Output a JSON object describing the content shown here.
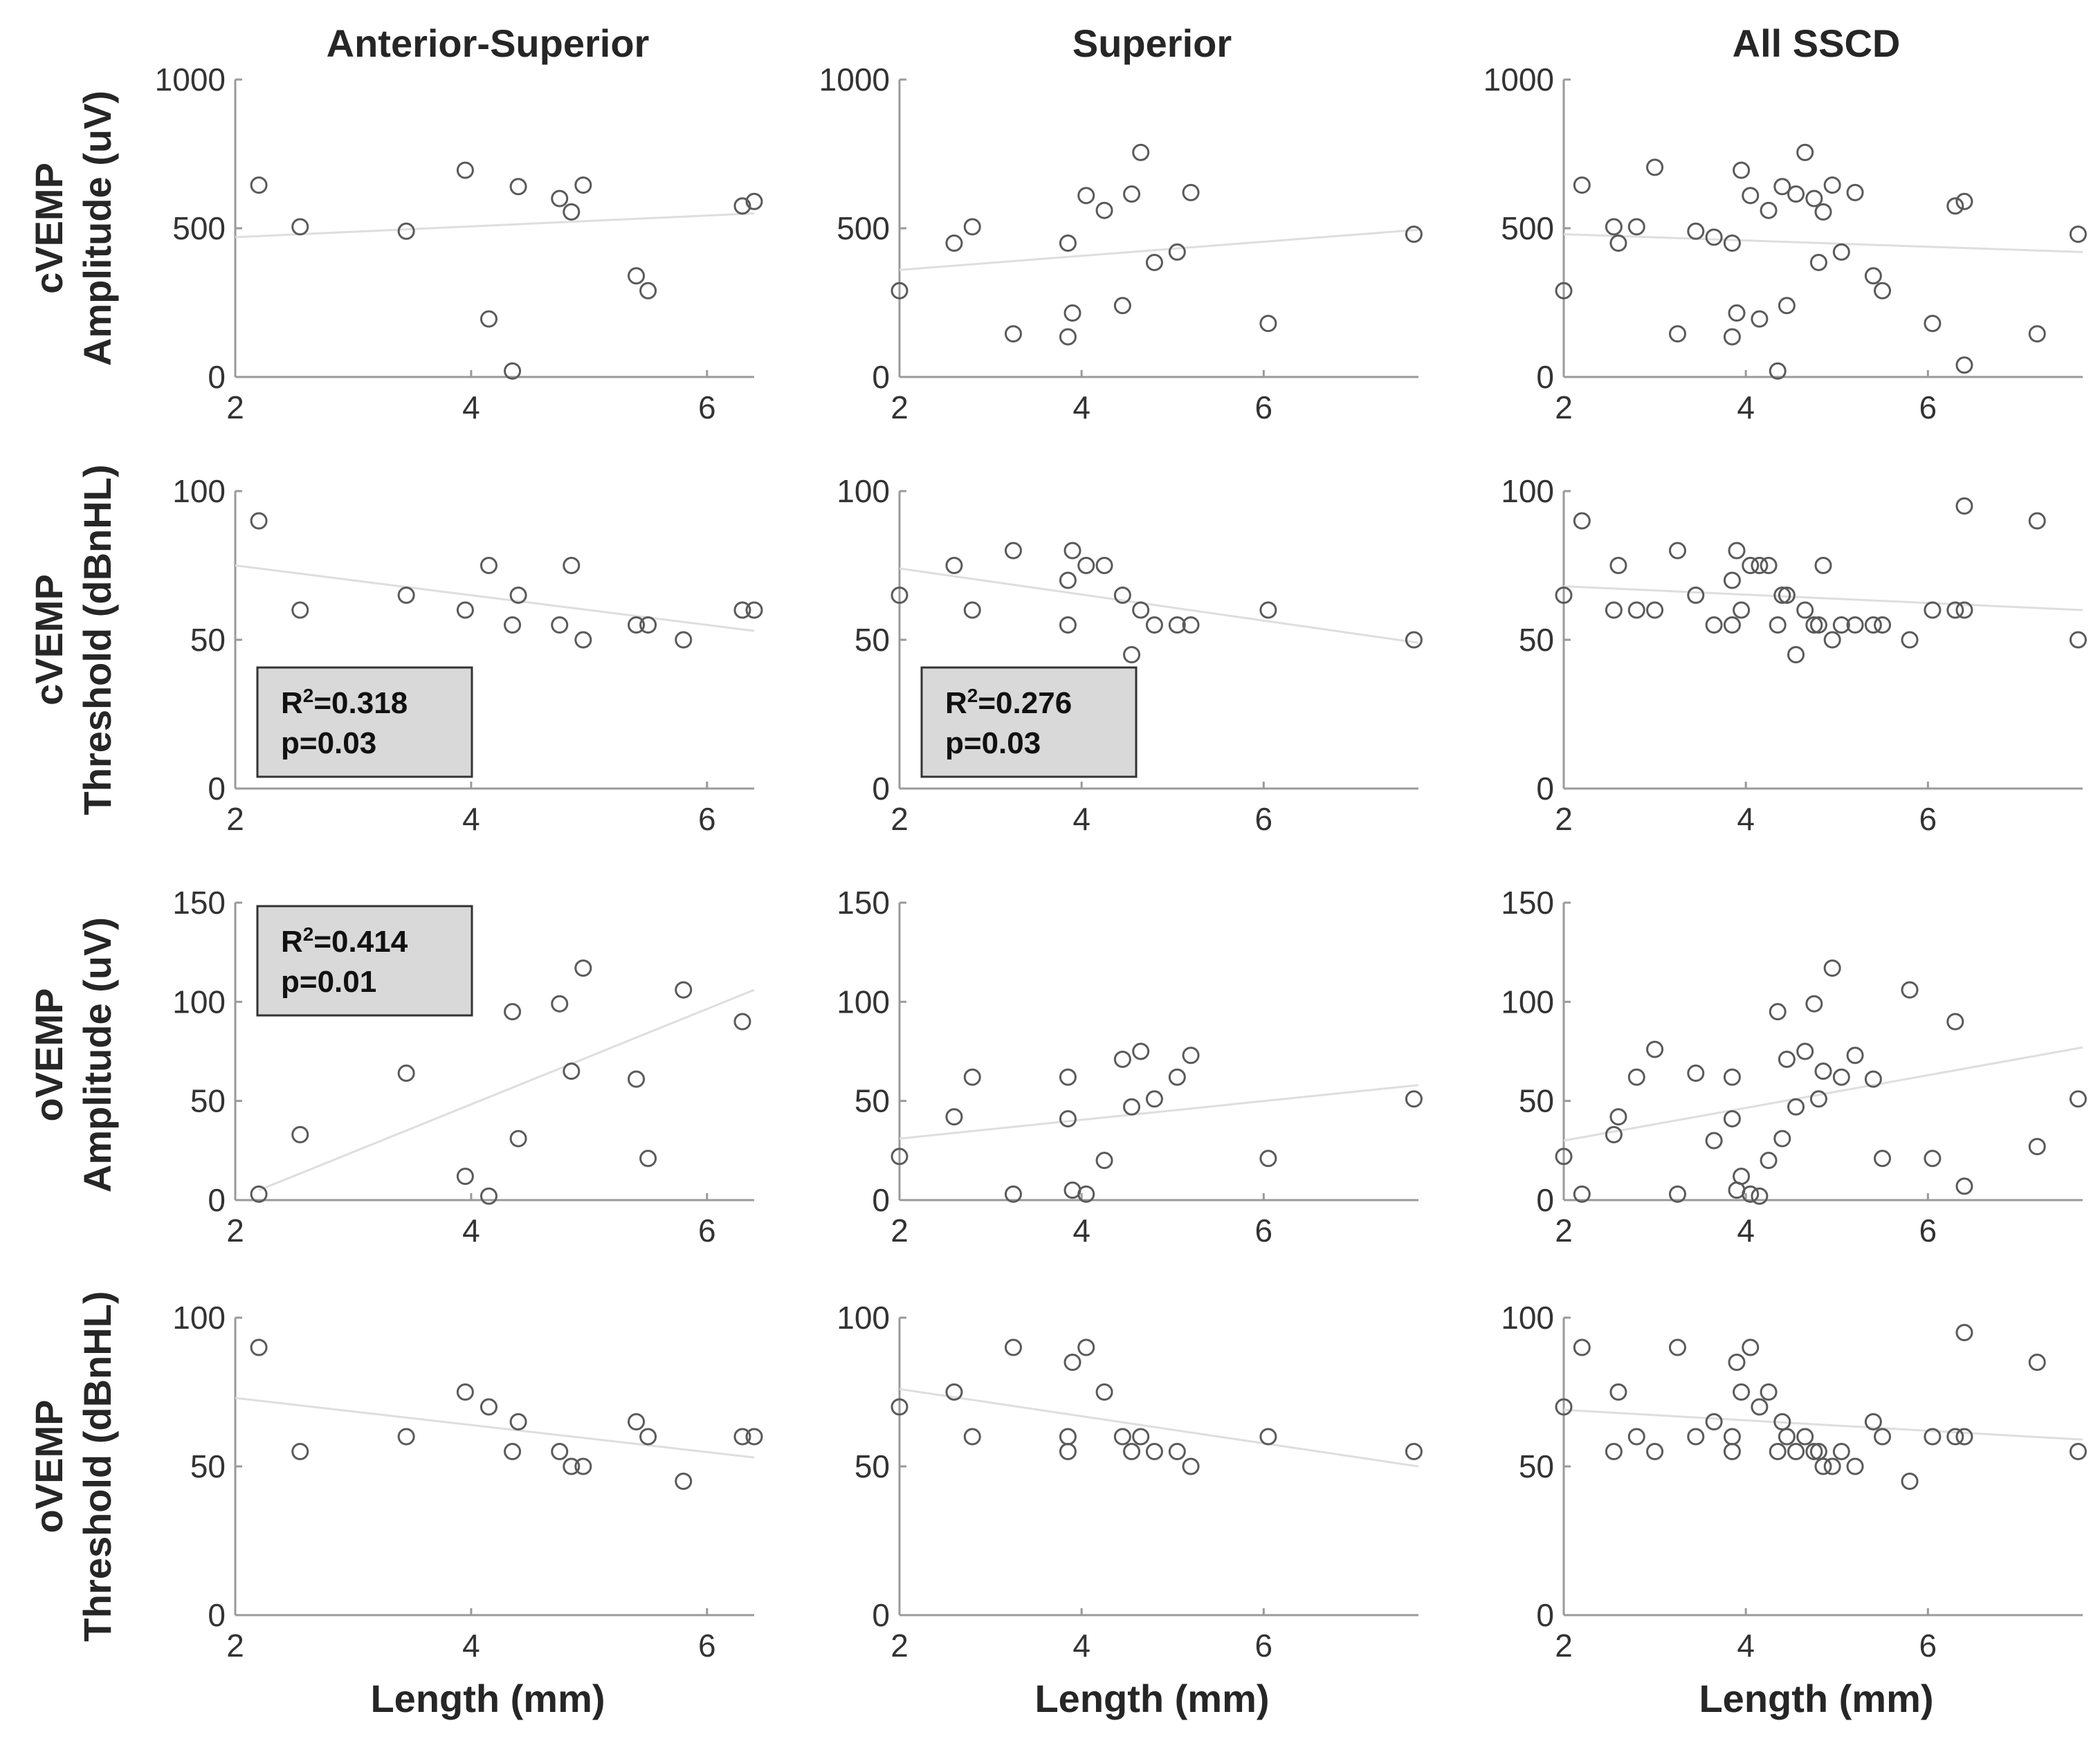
{
  "figure": {
    "columns": [
      "Anterior-Superior",
      "Superior",
      "All SSCD"
    ],
    "rows": [
      [
        "cVEMP",
        "Amplitude (uV)"
      ],
      [
        "cVEMP",
        "Threshold (dBnHL)"
      ],
      [
        "oVEMP",
        "Amplitude (uV)"
      ],
      [
        "oVEMP",
        "Threshold (dBnHL)"
      ]
    ],
    "xlabel": "Length (mm)"
  },
  "chart_data": [
    {
      "type": "scatter",
      "title": "Anterior-Superior",
      "row": 0,
      "col": 0,
      "ylabel": "cVEMP Amplitude (uV)",
      "xlabel": "",
      "xlim": [
        2,
        6.4
      ],
      "xticks": [
        2,
        4,
        6
      ],
      "ylim": [
        0,
        1000
      ],
      "yticks": [
        0,
        500,
        1000
      ],
      "x": [
        2.2,
        2.55,
        3.45,
        3.95,
        4.15,
        4.35,
        4.4,
        4.75,
        4.85,
        4.95,
        5.4,
        5.5,
        6.3,
        6.4
      ],
      "y": [
        645,
        505,
        490,
        695,
        195,
        20,
        640,
        600,
        555,
        645,
        340,
        290,
        575,
        590
      ],
      "fit": [
        [
          2,
          470
        ],
        [
          6.4,
          550
        ]
      ],
      "stats": null
    },
    {
      "type": "scatter",
      "title": "Superior",
      "row": 0,
      "col": 1,
      "ylabel": "",
      "xlabel": "",
      "xlim": [
        2,
        7.7
      ],
      "xticks": [
        2,
        4,
        6
      ],
      "ylim": [
        0,
        1000
      ],
      "yticks": [
        0,
        500,
        1000
      ],
      "x": [
        2.0,
        2.6,
        2.8,
        3.25,
        3.85,
        3.85,
        3.9,
        4.05,
        4.25,
        4.45,
        4.55,
        4.65,
        4.8,
        5.05,
        5.2,
        6.05,
        7.65
      ],
      "y": [
        290,
        450,
        505,
        145,
        135,
        450,
        215,
        610,
        560,
        240,
        615,
        755,
        385,
        420,
        620,
        180,
        480
      ],
      "fit": [
        [
          2,
          360
        ],
        [
          7.7,
          495
        ]
      ],
      "stats": null
    },
    {
      "type": "scatter",
      "title": "All SSCD",
      "row": 0,
      "col": 2,
      "ylabel": "",
      "xlabel": "",
      "xlim": [
        2,
        7.7
      ],
      "xticks": [
        2,
        4,
        6
      ],
      "ylim": [
        0,
        1000
      ],
      "yticks": [
        0,
        500,
        1000
      ],
      "x": [
        2.0,
        2.2,
        2.55,
        2.6,
        2.8,
        3.0,
        3.25,
        3.45,
        3.65,
        3.85,
        3.85,
        3.9,
        3.95,
        4.05,
        4.15,
        4.25,
        4.35,
        4.4,
        4.45,
        4.55,
        4.65,
        4.75,
        4.8,
        4.85,
        4.95,
        5.05,
        5.2,
        5.4,
        5.5,
        6.05,
        6.3,
        6.4,
        6.4,
        7.2,
        7.65
      ],
      "y": [
        290,
        645,
        505,
        450,
        505,
        705,
        145,
        490,
        470,
        135,
        450,
        215,
        695,
        610,
        195,
        560,
        20,
        640,
        240,
        615,
        755,
        600,
        385,
        555,
        645,
        420,
        620,
        340,
        290,
        180,
        575,
        590,
        40,
        145,
        480
      ],
      "fit": [
        [
          2,
          480
        ],
        [
          7.7,
          420
        ]
      ],
      "stats": null
    },
    {
      "type": "scatter",
      "title": "",
      "row": 1,
      "col": 0,
      "ylabel": "cVEMP Threshold (dBnHL)",
      "xlabel": "",
      "xlim": [
        2,
        6.4
      ],
      "xticks": [
        2,
        4,
        6
      ],
      "ylim": [
        0,
        100
      ],
      "yticks": [
        0,
        50,
        100
      ],
      "x": [
        2.2,
        2.55,
        3.45,
        3.95,
        4.15,
        4.35,
        4.4,
        4.75,
        4.85,
        4.95,
        5.4,
        5.5,
        5.8,
        6.3,
        6.4
      ],
      "y": [
        90,
        60,
        65,
        60,
        75,
        55,
        65,
        55,
        75,
        50,
        55,
        55,
        50,
        60,
        60
      ],
      "fit": [
        [
          2,
          75
        ],
        [
          6.4,
          53
        ]
      ],
      "stats": {
        "r2": "=0.318",
        "p": "p=0.03"
      }
    },
    {
      "type": "scatter",
      "title": "",
      "row": 1,
      "col": 1,
      "ylabel": "",
      "xlabel": "",
      "xlim": [
        2,
        7.7
      ],
      "xticks": [
        2,
        4,
        6
      ],
      "ylim": [
        0,
        100
      ],
      "yticks": [
        0,
        50,
        100
      ],
      "x": [
        2.0,
        2.6,
        2.8,
        3.25,
        3.85,
        3.85,
        3.9,
        4.05,
        4.25,
        4.45,
        4.55,
        4.65,
        4.8,
        5.05,
        5.2,
        6.05,
        7.65
      ],
      "y": [
        65,
        75,
        60,
        80,
        70,
        55,
        80,
        75,
        75,
        65,
        45,
        60,
        55,
        55,
        55,
        60,
        50
      ],
      "fit": [
        [
          2,
          74
        ],
        [
          7.7,
          49
        ]
      ],
      "stats": {
        "r2": "=0.276",
        "p": "p=0.03"
      }
    },
    {
      "type": "scatter",
      "title": "",
      "row": 1,
      "col": 2,
      "ylabel": "",
      "xlabel": "",
      "xlim": [
        2,
        7.7
      ],
      "xticks": [
        2,
        4,
        6
      ],
      "ylim": [
        0,
        100
      ],
      "yticks": [
        0,
        50,
        100
      ],
      "x": [
        2.0,
        2.2,
        2.55,
        2.6,
        2.8,
        3.0,
        3.25,
        3.45,
        3.65,
        3.85,
        3.85,
        3.9,
        3.95,
        4.05,
        4.15,
        4.25,
        4.35,
        4.4,
        4.45,
        4.55,
        4.65,
        4.75,
        4.8,
        4.85,
        4.95,
        5.05,
        5.2,
        5.4,
        5.5,
        5.8,
        6.05,
        6.3,
        6.4,
        6.4,
        7.2,
        7.65
      ],
      "y": [
        65,
        90,
        60,
        75,
        60,
        60,
        80,
        65,
        55,
        70,
        55,
        80,
        60,
        75,
        75,
        75,
        55,
        65,
        65,
        45,
        60,
        55,
        55,
        75,
        50,
        55,
        55,
        55,
        55,
        50,
        60,
        60,
        60,
        95,
        90,
        50
      ],
      "fit": [
        [
          2,
          68
        ],
        [
          7.7,
          60
        ]
      ],
      "stats": null
    },
    {
      "type": "scatter",
      "title": "",
      "row": 2,
      "col": 0,
      "ylabel": "oVEMP Amplitude (uV)",
      "xlabel": "",
      "xlim": [
        2,
        6.4
      ],
      "xticks": [
        2,
        4,
        6
      ],
      "ylim": [
        0,
        150
      ],
      "yticks": [
        0,
        50,
        100,
        150
      ],
      "x": [
        2.2,
        2.55,
        3.45,
        3.95,
        4.15,
        4.35,
        4.4,
        4.75,
        4.85,
        4.95,
        5.4,
        5.5,
        5.8,
        6.3
      ],
      "y": [
        3,
        33,
        64,
        12,
        2,
        95,
        31,
        99,
        65,
        117,
        61,
        21,
        106,
        90
      ],
      "fit": [
        [
          2.2,
          5
        ],
        [
          6.4,
          106
        ]
      ],
      "stats": {
        "r2": "=0.414",
        "p": "p=0.01"
      }
    },
    {
      "type": "scatter",
      "title": "",
      "row": 2,
      "col": 1,
      "ylabel": "",
      "xlabel": "",
      "xlim": [
        2,
        7.7
      ],
      "xticks": [
        2,
        4,
        6
      ],
      "ylim": [
        0,
        150
      ],
      "yticks": [
        0,
        50,
        100,
        150
      ],
      "x": [
        2.0,
        2.6,
        2.8,
        3.25,
        3.85,
        3.85,
        3.9,
        4.05,
        4.25,
        4.45,
        4.55,
        4.65,
        4.8,
        5.05,
        5.2,
        6.05,
        7.65
      ],
      "y": [
        22,
        42,
        62,
        3,
        41,
        62,
        5,
        3,
        20,
        71,
        47,
        75,
        51,
        62,
        73,
        21,
        51
      ],
      "fit": [
        [
          2,
          31
        ],
        [
          7.7,
          58
        ]
      ],
      "stats": null
    },
    {
      "type": "scatter",
      "title": "",
      "row": 2,
      "col": 2,
      "ylabel": "",
      "xlabel": "",
      "xlim": [
        2,
        7.7
      ],
      "xticks": [
        2,
        4,
        6
      ],
      "ylim": [
        0,
        150
      ],
      "yticks": [
        0,
        50,
        100,
        150
      ],
      "x": [
        2.0,
        2.2,
        2.55,
        2.6,
        2.8,
        3.0,
        3.25,
        3.45,
        3.65,
        3.85,
        3.85,
        3.9,
        3.95,
        4.05,
        4.15,
        4.25,
        4.35,
        4.4,
        4.45,
        4.55,
        4.65,
        4.75,
        4.8,
        4.85,
        4.95,
        5.05,
        5.2,
        5.4,
        5.5,
        5.8,
        6.05,
        6.3,
        6.4,
        7.2,
        7.65
      ],
      "y": [
        22,
        3,
        33,
        42,
        62,
        76,
        3,
        64,
        30,
        41,
        62,
        5,
        12,
        3,
        2,
        20,
        95,
        31,
        71,
        47,
        75,
        99,
        51,
        65,
        117,
        62,
        73,
        61,
        21,
        106,
        21,
        90,
        7,
        27,
        51
      ],
      "fit": [
        [
          2,
          30
        ],
        [
          7.7,
          77
        ]
      ],
      "stats": null
    },
    {
      "type": "scatter",
      "title": "",
      "row": 3,
      "col": 0,
      "ylabel": "oVEMP Threshold (dBnHL)",
      "xlabel": "Length (mm)",
      "xlim": [
        2,
        6.4
      ],
      "xticks": [
        2,
        4,
        6
      ],
      "ylim": [
        0,
        100
      ],
      "yticks": [
        0,
        50,
        100
      ],
      "x": [
        2.2,
        2.55,
        3.45,
        3.95,
        4.15,
        4.35,
        4.4,
        4.75,
        4.85,
        4.95,
        5.4,
        5.5,
        5.8,
        6.3,
        6.4
      ],
      "y": [
        90,
        55,
        60,
        75,
        70,
        55,
        65,
        55,
        50,
        50,
        65,
        60,
        45,
        60,
        60
      ],
      "fit": [
        [
          2,
          73
        ],
        [
          6.4,
          53
        ]
      ],
      "stats": null
    },
    {
      "type": "scatter",
      "title": "",
      "row": 3,
      "col": 1,
      "ylabel": "",
      "xlabel": "Length (mm)",
      "xlim": [
        2,
        7.7
      ],
      "xticks": [
        2,
        4,
        6
      ],
      "ylim": [
        0,
        100
      ],
      "yticks": [
        0,
        50,
        100
      ],
      "x": [
        2.0,
        2.6,
        2.8,
        3.25,
        3.85,
        3.85,
        3.9,
        4.05,
        4.25,
        4.45,
        4.55,
        4.65,
        4.8,
        5.05,
        5.2,
        6.05,
        7.65
      ],
      "y": [
        70,
        75,
        60,
        90,
        60,
        55,
        85,
        90,
        75,
        60,
        55,
        60,
        55,
        55,
        50,
        60,
        55
      ],
      "fit": [
        [
          2,
          76
        ],
        [
          7.7,
          50
        ]
      ],
      "stats": null
    },
    {
      "type": "scatter",
      "title": "",
      "row": 3,
      "col": 2,
      "ylabel": "",
      "xlabel": "Length (mm)",
      "xlim": [
        2,
        7.7
      ],
      "xticks": [
        2,
        4,
        6
      ],
      "ylim": [
        0,
        100
      ],
      "yticks": [
        0,
        50,
        100
      ],
      "x": [
        2.0,
        2.2,
        2.55,
        2.6,
        2.8,
        3.0,
        3.25,
        3.45,
        3.65,
        3.85,
        3.85,
        3.9,
        3.95,
        4.05,
        4.15,
        4.25,
        4.35,
        4.4,
        4.45,
        4.55,
        4.65,
        4.75,
        4.8,
        4.85,
        4.95,
        5.05,
        5.2,
        5.4,
        5.5,
        5.8,
        6.05,
        6.3,
        6.4,
        6.4,
        7.2,
        7.65
      ],
      "y": [
        70,
        90,
        55,
        75,
        60,
        55,
        90,
        60,
        65,
        60,
        55,
        85,
        75,
        90,
        70,
        75,
        55,
        65,
        60,
        55,
        60,
        55,
        55,
        50,
        50,
        55,
        50,
        65,
        60,
        45,
        60,
        60,
        60,
        95,
        85,
        55
      ],
      "fit": [
        [
          2,
          69
        ],
        [
          7.7,
          59
        ]
      ],
      "stats": null
    }
  ]
}
